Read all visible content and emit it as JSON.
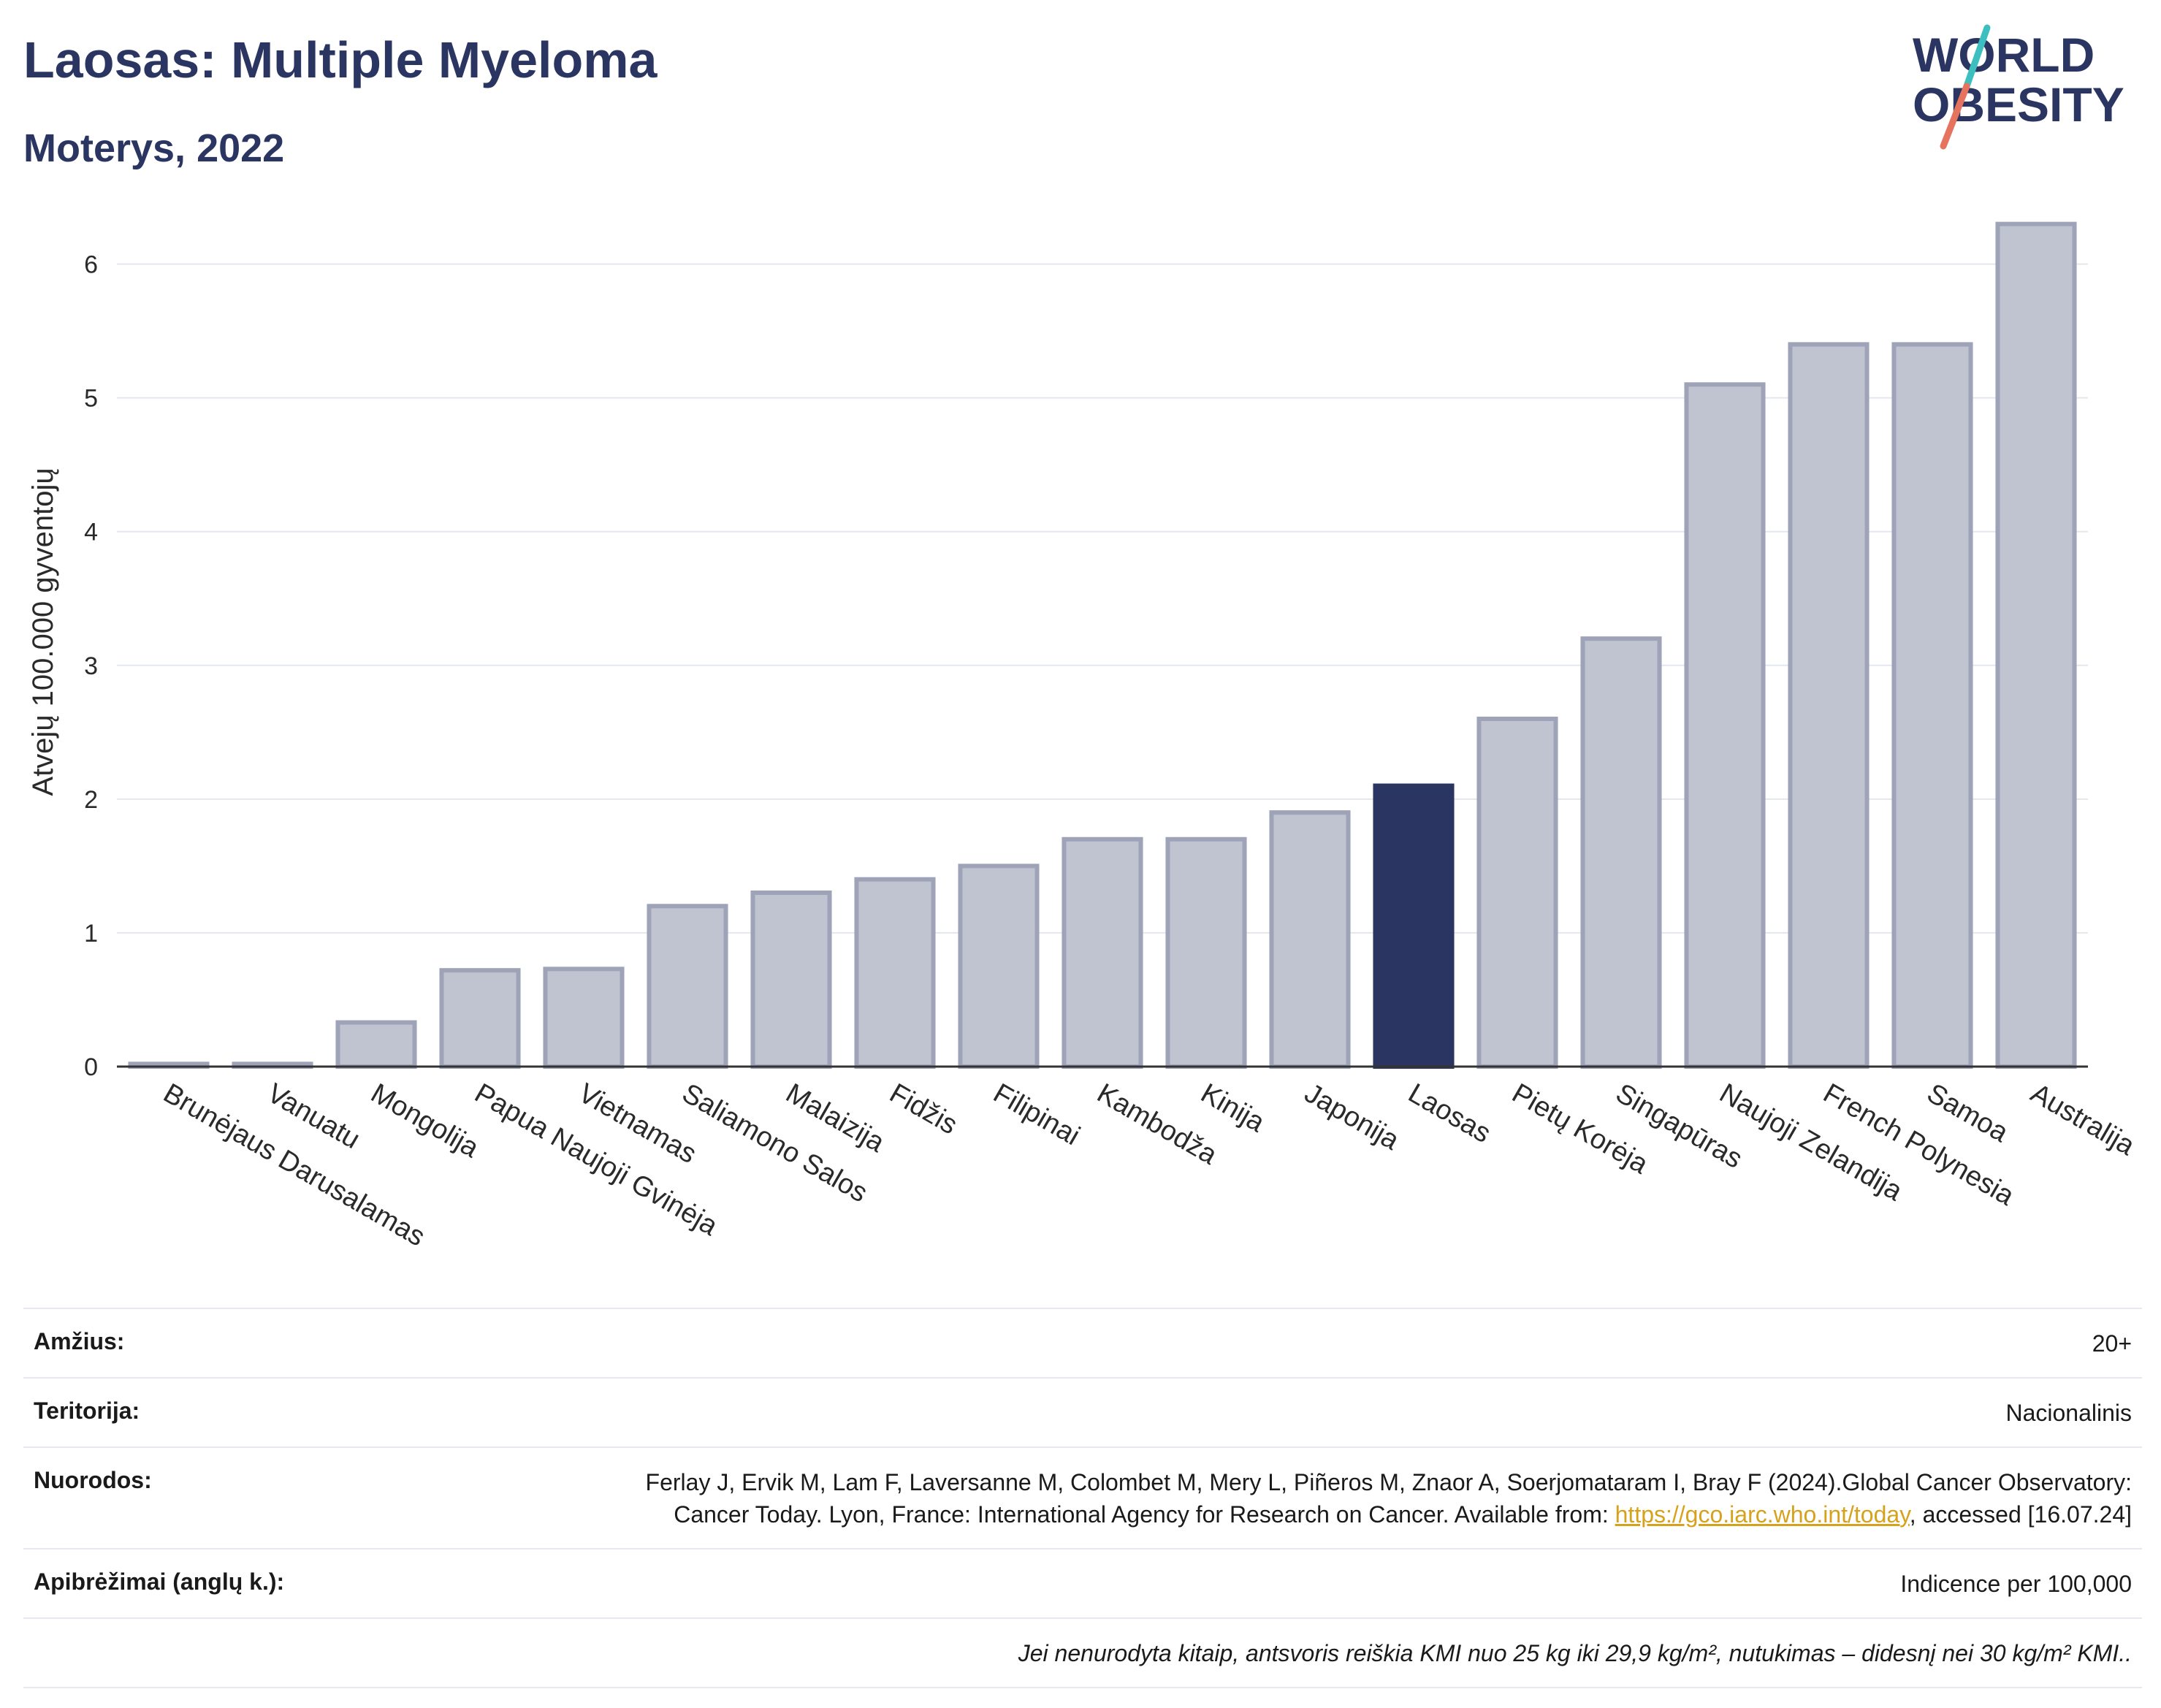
{
  "header": {
    "title": "Laosas: Multiple Myeloma",
    "subtitle": "Moterys, 2022",
    "logo_line1": "WORLD",
    "logo_line2": "OBESITY"
  },
  "colors": {
    "title": "#2b3561",
    "bar": "#c0c3d0",
    "bar_border": "#9ea3b8",
    "highlight": "#2b3561",
    "logo_teal": "#3dbfbf",
    "logo_coral": "#e5735d"
  },
  "chart_data": {
    "type": "bar",
    "ylabel": "Atvejų 100.000 gyventojų",
    "ylim": [
      0,
      6.5
    ],
    "yticks": [
      0,
      1,
      2,
      3,
      4,
      5,
      6
    ],
    "grid": true,
    "highlight": "Laosas",
    "categories": [
      "Brunėjaus Darusalamas",
      "Vanuatu",
      "Mongolija",
      "Papua Naujoji Gvinėja",
      "Vietnamas",
      "Saliamono Salos",
      "Malaizija",
      "Fidžis",
      "Filipinai",
      "Kambodža",
      "Kinija",
      "Japonija",
      "Laosas",
      "Pietų Korėja",
      "Singapūras",
      "Naujoji Zelandija",
      "French Polynesia",
      "Samoa",
      "Australija"
    ],
    "values": [
      0.02,
      0.02,
      0.33,
      0.72,
      0.73,
      1.2,
      1.3,
      1.4,
      1.5,
      1.7,
      1.7,
      1.9,
      2.1,
      2.6,
      3.2,
      5.1,
      5.4,
      5.4,
      6.3
    ]
  },
  "info": {
    "age_label": "Amžius:",
    "age_value": "20+",
    "territory_label": "Teritorija:",
    "territory_value": "Nacionalinis",
    "refs_label": "Nuorodos:",
    "refs_text_1": "Ferlay J, Ervik M, Lam F, Laversanne M, Colombet M, Mery L, Piñeros M, Znaor A, Soerjomataram I, Bray F (2024).Global Cancer Observatory: Cancer Today. Lyon, France: International Agency for Research on Cancer. Available from: ",
    "refs_link": "https://gco.iarc.who.int/today",
    "refs_text_2": ", accessed [16.07.24]",
    "definitions_label": "Apibrėžimai (anglų k.):",
    "definitions_value": "Indicence per 100,000",
    "note": "Jei nenurodyta kitaip, antsvoris reiškia KMI nuo 25 kg iki 29,9 kg/m², nutukimas – didesnį nei 30 kg/m² KMI.."
  }
}
